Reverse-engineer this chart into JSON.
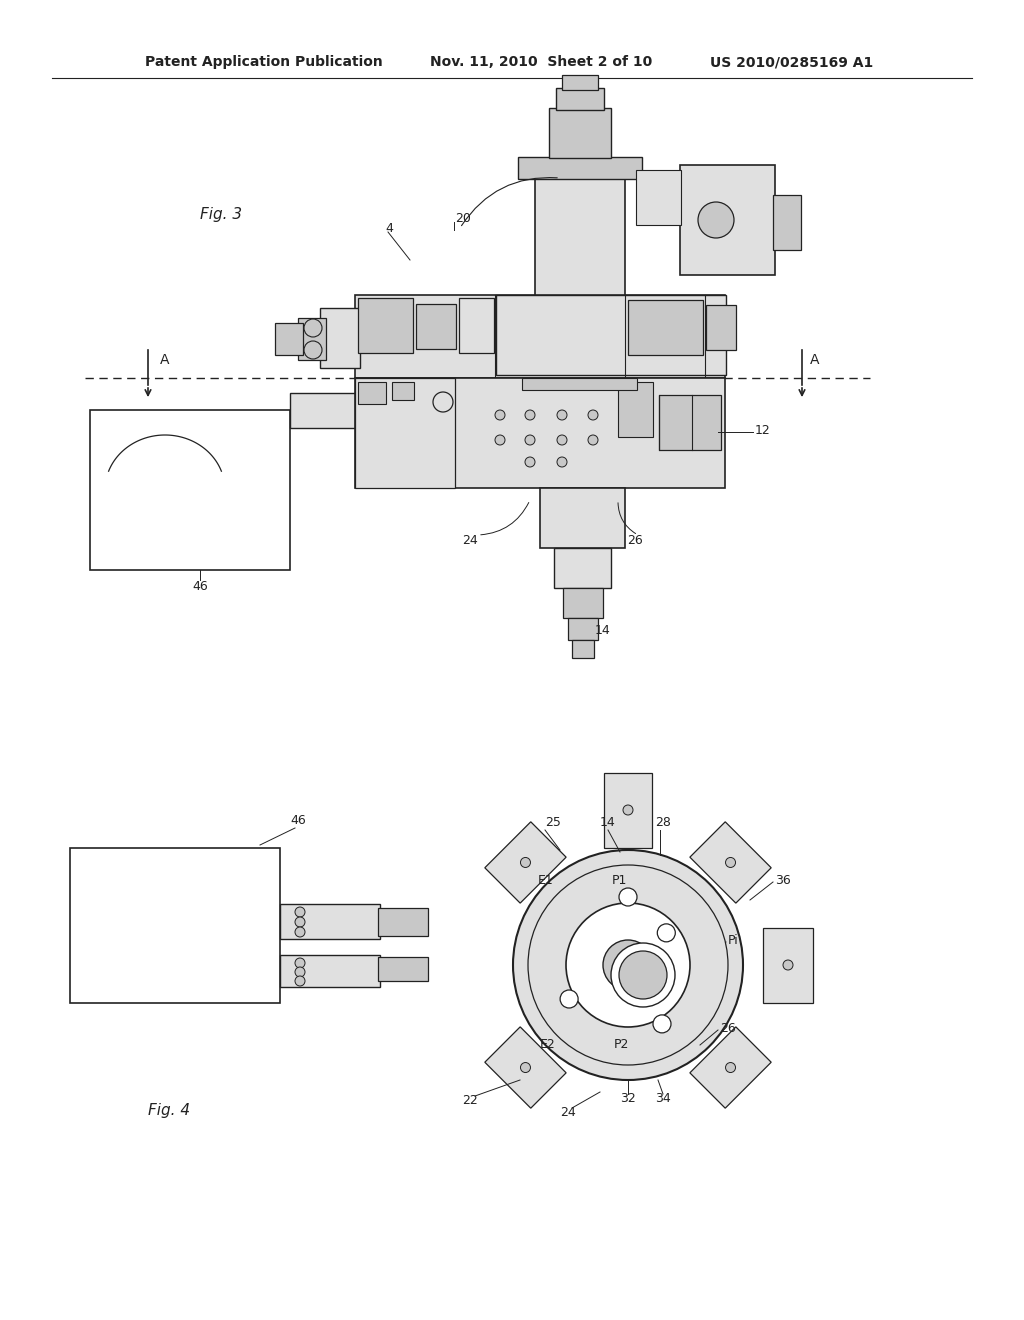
{
  "bg_color": "#ffffff",
  "line_color": "#222222",
  "gray_fill": "#c8c8c8",
  "light_gray": "#e0e0e0",
  "mid_gray": "#b0b0b0",
  "header_left": "Patent Application Publication",
  "header_mid": "Nov. 11, 2010  Sheet 2 of 10",
  "header_right": "US 2010/0285169 A1",
  "fig3_label": "Fig. 3",
  "fig4_label": "Fig. 4"
}
